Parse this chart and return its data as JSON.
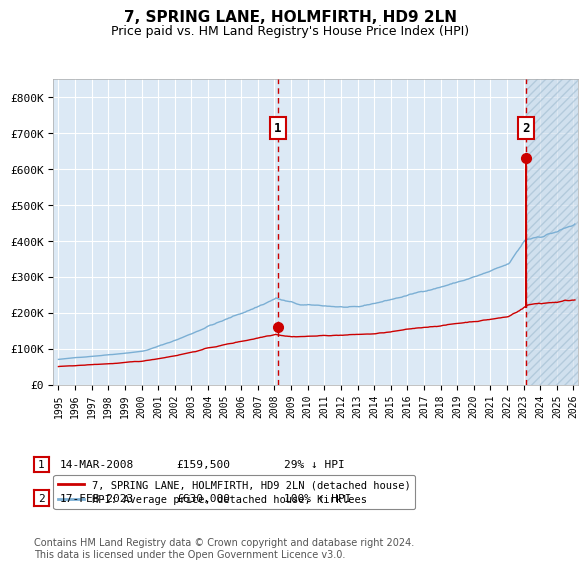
{
  "title": "7, SPRING LANE, HOLMFIRTH, HD9 2LN",
  "subtitle": "Price paid vs. HM Land Registry's House Price Index (HPI)",
  "title_fontsize": 11,
  "subtitle_fontsize": 9,
  "bg_color": "#dce9f5",
  "grid_color": "#ffffff",
  "red_line_color": "#cc0000",
  "blue_line_color": "#7bafd4",
  "ylim": [
    0,
    850000
  ],
  "yticks": [
    0,
    100000,
    200000,
    300000,
    400000,
    500000,
    600000,
    700000,
    800000
  ],
  "ytick_labels": [
    "£0",
    "£100K",
    "£200K",
    "£300K",
    "£400K",
    "£500K",
    "£600K",
    "£700K",
    "£800K"
  ],
  "year_start": 1995,
  "year_end": 2026,
  "sale1_year": 2008.2,
  "sale1_price": 159500,
  "sale2_year": 2023.12,
  "sale2_price": 630000,
  "legend_label_red": "7, SPRING LANE, HOLMFIRTH, HD9 2LN (detached house)",
  "legend_label_blue": "HPI: Average price, detached house, Kirklees",
  "table_row1": [
    "1",
    "14-MAR-2008",
    "£159,500",
    "29% ↓ HPI"
  ],
  "table_row2": [
    "2",
    "17-FEB-2023",
    "£630,000",
    "100% ↑ HPI"
  ],
  "footer": "Contains HM Land Registry data © Crown copyright and database right 2024.\nThis data is licensed under the Open Government Licence v3.0.",
  "footer_fontsize": 7
}
